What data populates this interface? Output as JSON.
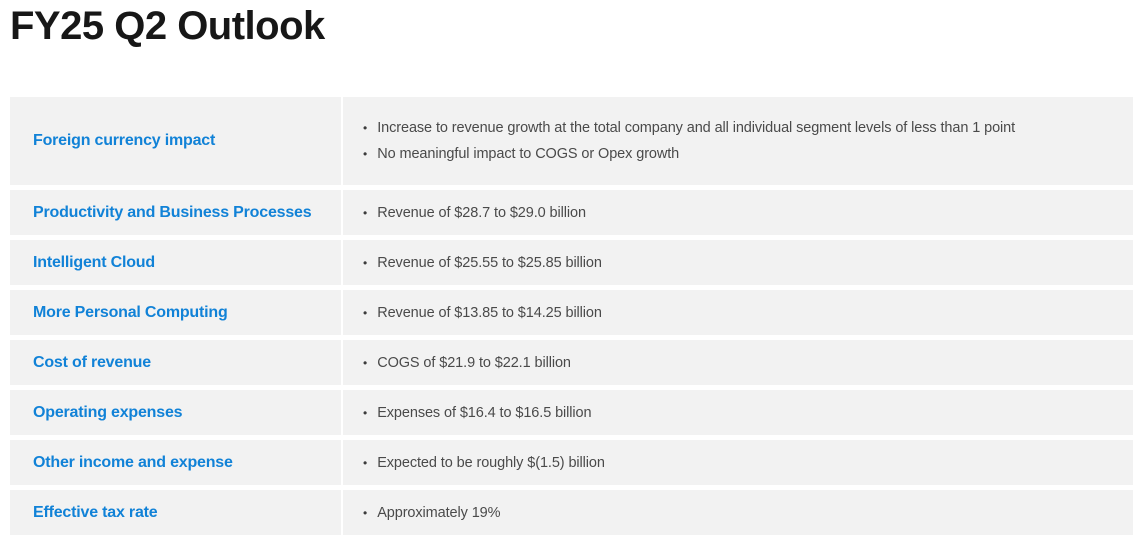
{
  "page": {
    "title": "FY25 Q2 Outlook"
  },
  "list": {
    "bullet_char": "•"
  },
  "colors": {
    "label_blue": "#1182d7",
    "row_background": "#f2f2f2",
    "body_text": "#4a4a4a",
    "title_text": "#171717",
    "page_background": "#ffffff"
  },
  "table": {
    "rows": [
      {
        "label": "Foreign currency impact",
        "bullets": [
          "Increase to revenue growth at the total company and all individual segment levels of less than 1 point",
          "No meaningful impact to COGS or Opex growth"
        ]
      },
      {
        "label": "Productivity and Business Processes",
        "bullets": [
          "Revenue of $28.7 to $29.0 billion"
        ]
      },
      {
        "label": "Intelligent Cloud",
        "bullets": [
          "Revenue of $25.55 to $25.85 billion"
        ]
      },
      {
        "label": "More Personal Computing",
        "bullets": [
          "Revenue of $13.85 to $14.25 billion"
        ]
      },
      {
        "label": "Cost of revenue",
        "bullets": [
          "COGS of $21.9 to $22.1 billion"
        ]
      },
      {
        "label": "Operating expenses",
        "bullets": [
          "Expenses of $16.4 to $16.5 billion"
        ]
      },
      {
        "label": "Other income and expense",
        "bullets": [
          "Expected to be roughly $(1.5) billion"
        ]
      },
      {
        "label": "Effective tax rate",
        "bullets": [
          "Approximately 19%"
        ]
      }
    ]
  }
}
